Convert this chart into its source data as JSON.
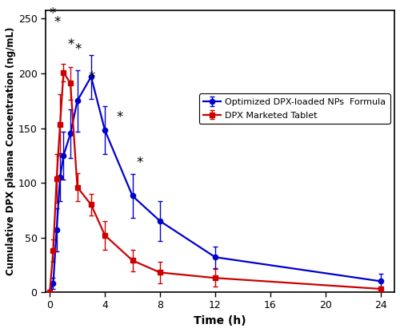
{
  "blue_x": [
    0,
    0.25,
    0.5,
    0.75,
    1.0,
    1.5,
    2.0,
    3.0,
    4.0,
    6.0,
    8.0,
    12.0,
    24.0
  ],
  "blue_y": [
    0,
    8,
    57,
    105,
    125,
    145,
    175,
    197,
    148,
    88,
    65,
    32,
    10
  ],
  "blue_err": [
    0,
    5,
    20,
    22,
    22,
    22,
    28,
    20,
    22,
    20,
    18,
    10,
    7
  ],
  "red_x": [
    0,
    0.25,
    0.5,
    0.75,
    1.0,
    1.5,
    2.0,
    3.0,
    4.0,
    6.0,
    8.0,
    12.0,
    24.0
  ],
  "red_y": [
    0,
    38,
    104,
    153,
    201,
    191,
    96,
    80,
    52,
    29,
    18,
    13,
    3
  ],
  "red_err": [
    0,
    10,
    22,
    28,
    8,
    15,
    13,
    10,
    13,
    10,
    10,
    8,
    2
  ],
  "star_pts": [
    [
      0.18,
      248
    ],
    [
      0.52,
      240
    ],
    [
      1.52,
      220
    ],
    [
      2.05,
      215
    ],
    [
      3.02,
      190
    ],
    [
      5.05,
      153
    ],
    [
      6.55,
      112
    ]
  ],
  "xlim": [
    -0.3,
    25
  ],
  "ylim": [
    0,
    258
  ],
  "xticks": [
    0,
    4,
    8,
    12,
    16,
    20,
    24
  ],
  "yticks": [
    0,
    50,
    100,
    150,
    200,
    250
  ],
  "xlabel": "Time (h)",
  "ylabel": "Cumulative DPX plasma Concentration (ng/mL)",
  "legend_blue": "Optimized DPX-loaded NPs  Formula",
  "legend_red": "DPX Marketed Tablet",
  "blue_color": "#0000CC",
  "red_color": "#CC0000",
  "bg_color": "#FFFFFF"
}
